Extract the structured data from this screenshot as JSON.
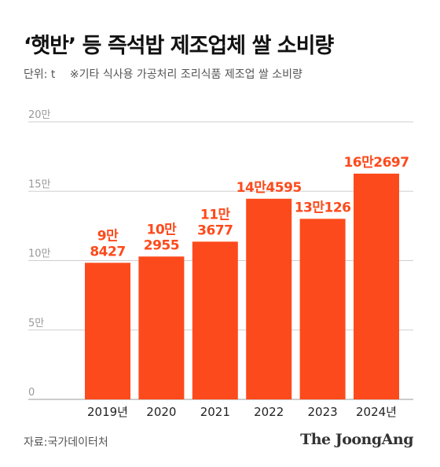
{
  "header": {
    "title": "‘햇반’ 등 즉석밥 제조업체 쌀 소비량",
    "unit": "단위: t",
    "note": "※기타 식사용 가공처리 조리식품 제조업 쌀 소비량"
  },
  "footer": {
    "source": "자료:국가데이터처",
    "brand": "The JoongAng"
  },
  "colors": {
    "bar": "#fd4a1c",
    "label": "#fd4a1c",
    "grid": "#cfcfcf",
    "axis_text": "#999999"
  },
  "chart_data": {
    "type": "bar",
    "title": "‘햇반’ 등 즉석밥 제조업체 쌀 소비량",
    "categories": [
      "2019년",
      "2020",
      "2021",
      "2022",
      "2023",
      "2024년"
    ],
    "values": [
      98427,
      102955,
      113677,
      144595,
      130126,
      162697
    ],
    "data_labels": [
      [
        "9만",
        "8427"
      ],
      [
        "10만",
        "2955"
      ],
      [
        "11만",
        "3677"
      ],
      [
        "14만4595"
      ],
      [
        "13만126"
      ],
      [
        "16만2697"
      ]
    ],
    "ylim": [
      0,
      200000
    ],
    "yticks": [
      0,
      50000,
      100000,
      150000,
      200000
    ],
    "ytick_labels": [
      "0",
      "5만",
      "10만",
      "15만",
      "20만"
    ],
    "grid": true,
    "unit": "t"
  }
}
